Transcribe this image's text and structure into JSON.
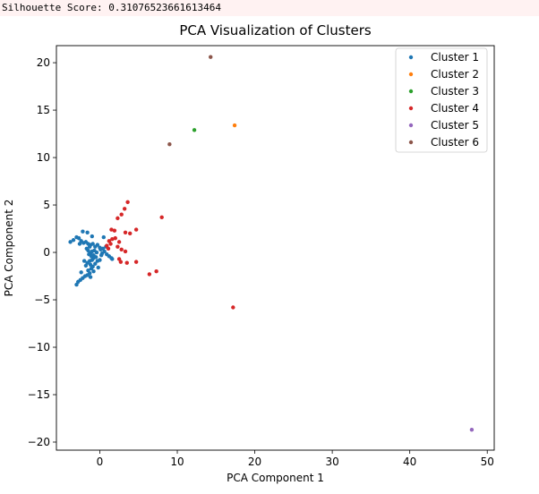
{
  "output": {
    "silhouette_text": "Silhouette Score: 0.31076523661613464"
  },
  "chart_data": {
    "type": "scatter",
    "title": "PCA Visualization of Clusters",
    "xlabel": "PCA Component 1",
    "ylabel": "PCA Component 2",
    "xlim": [
      -5.6,
      50.9
    ],
    "ylim": [
      -20.85,
      21.8
    ],
    "xticks": [
      0,
      10,
      20,
      30,
      40,
      50
    ],
    "yticks": [
      -20,
      -15,
      -10,
      -5,
      0,
      5,
      10,
      15,
      20
    ],
    "grid": false,
    "legend_position": "top-right",
    "series": [
      {
        "name": "Cluster 1",
        "color": "#1f77b4",
        "points": [
          [
            -3.8,
            1.1
          ],
          [
            -3.4,
            1.3
          ],
          [
            -3.0,
            1.6
          ],
          [
            -2.7,
            1.5
          ],
          [
            -2.4,
            1.2
          ],
          [
            -2.1,
            1.0
          ],
          [
            -1.8,
            1.1
          ],
          [
            -1.5,
            0.9
          ],
          [
            -1.2,
            0.8
          ],
          [
            -0.9,
            0.9
          ],
          [
            -0.6,
            0.6
          ],
          [
            -2.2,
            2.2
          ],
          [
            -1.6,
            2.1
          ],
          [
            -1.0,
            1.7
          ],
          [
            -0.3,
            0.8
          ],
          [
            0.0,
            0.5
          ],
          [
            0.4,
            0.4
          ],
          [
            0.8,
            0.6
          ],
          [
            -2.6,
            0.9
          ],
          [
            -1.3,
            0.6
          ],
          [
            0.5,
            1.6
          ],
          [
            -0.8,
            -0.3
          ],
          [
            -1.2,
            -0.1
          ],
          [
            -1.7,
            0.4
          ],
          [
            -1.5,
            0.2
          ],
          [
            -1.0,
            0.1
          ],
          [
            -0.7,
            0.2
          ],
          [
            -0.4,
            0.0
          ],
          [
            0.1,
            0.3
          ],
          [
            0.3,
            -0.1
          ],
          [
            0.6,
            0.1
          ],
          [
            0.9,
            -0.2
          ],
          [
            1.2,
            -0.4
          ],
          [
            1.5,
            -0.6
          ],
          [
            1.6,
            -0.7
          ],
          [
            -0.8,
            -0.6
          ],
          [
            -1.0,
            -0.8
          ],
          [
            -1.3,
            -0.9
          ],
          [
            -1.6,
            -1.1
          ],
          [
            -1.8,
            -1.4
          ],
          [
            -1.2,
            -1.3
          ],
          [
            -0.9,
            -1.5
          ],
          [
            -0.6,
            -1.2
          ],
          [
            -0.3,
            -0.9
          ],
          [
            0.0,
            -0.8
          ],
          [
            -1.1,
            -1.7
          ],
          [
            -0.8,
            -2.0
          ],
          [
            -1.3,
            -2.2
          ],
          [
            -1.6,
            -2.4
          ],
          [
            -1.9,
            -2.5
          ],
          [
            -2.2,
            -2.7
          ],
          [
            -2.5,
            -2.9
          ],
          [
            -2.8,
            -3.1
          ],
          [
            -3.0,
            -3.4
          ],
          [
            -2.4,
            -2.1
          ],
          [
            -1.5,
            -1.9
          ],
          [
            -1.2,
            -2.6
          ],
          [
            -1.1,
            -0.4
          ],
          [
            -0.5,
            -0.5
          ],
          [
            -0.2,
            -1.6
          ],
          [
            0.2,
            -0.3
          ],
          [
            -1.4,
            -0.2
          ],
          [
            -2.0,
            -0.9
          ]
        ]
      },
      {
        "name": "Cluster 2",
        "color": "#ff7f0e",
        "points": [
          [
            17.4,
            13.4
          ]
        ]
      },
      {
        "name": "Cluster 3",
        "color": "#2ca02c",
        "points": [
          [
            12.2,
            12.9
          ]
        ]
      },
      {
        "name": "Cluster 4",
        "color": "#d62728",
        "points": [
          [
            3.6,
            5.3
          ],
          [
            3.2,
            4.6
          ],
          [
            2.8,
            4.0
          ],
          [
            2.3,
            3.6
          ],
          [
            1.5,
            2.4
          ],
          [
            1.9,
            2.3
          ],
          [
            3.3,
            2.1
          ],
          [
            3.9,
            2.0
          ],
          [
            4.7,
            2.4
          ],
          [
            8.0,
            3.7
          ],
          [
            1.2,
            1.2
          ],
          [
            1.6,
            1.4
          ],
          [
            1.4,
            0.9
          ],
          [
            2.0,
            1.5
          ],
          [
            2.5,
            1.1
          ],
          [
            2.3,
            0.6
          ],
          [
            2.8,
            0.3
          ],
          [
            3.3,
            0.1
          ],
          [
            2.5,
            -0.7
          ],
          [
            2.7,
            -1.0
          ],
          [
            3.5,
            -1.1
          ],
          [
            4.7,
            -1.0
          ],
          [
            6.4,
            -2.3
          ],
          [
            7.3,
            -2.0
          ],
          [
            17.2,
            -5.8
          ],
          [
            0.9,
            0.7
          ],
          [
            1.1,
            0.4
          ]
        ]
      },
      {
        "name": "Cluster 5",
        "color": "#9467bd",
        "points": [
          [
            48.0,
            -18.7
          ]
        ]
      },
      {
        "name": "Cluster 6",
        "color": "#8c564b",
        "points": [
          [
            14.3,
            20.6
          ],
          [
            9.0,
            11.4
          ]
        ]
      }
    ]
  }
}
